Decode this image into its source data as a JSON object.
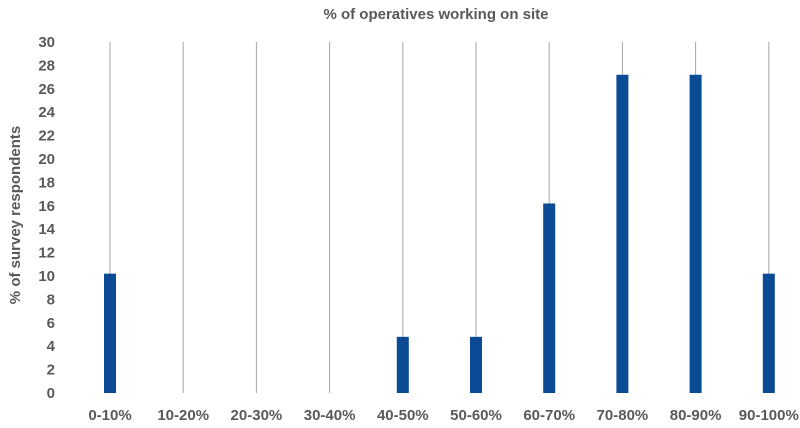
{
  "chart_data": {
    "type": "bar",
    "title": "% of operatives working on site",
    "xlabel": "",
    "ylabel": "% of survey respondents",
    "categories": [
      "0-10%",
      "10-20%",
      "20-30%",
      "30-40%",
      "40-50%",
      "50-60%",
      "60-70%",
      "70-80%",
      "80-90%",
      "90-100%"
    ],
    "values": [
      10.2,
      0,
      0,
      0,
      4.8,
      4.8,
      16.2,
      27.2,
      27.2,
      10.2
    ],
    "ylim": [
      0,
      30
    ],
    "yticks": [
      0,
      2,
      4,
      6,
      8,
      10,
      12,
      14,
      16,
      18,
      20,
      22,
      24,
      26,
      28,
      30
    ],
    "grid": "vertical lines at each category",
    "bar_color": "#0b4a94",
    "grid_color": "#a6a6a6",
    "text_color": "#595959"
  }
}
